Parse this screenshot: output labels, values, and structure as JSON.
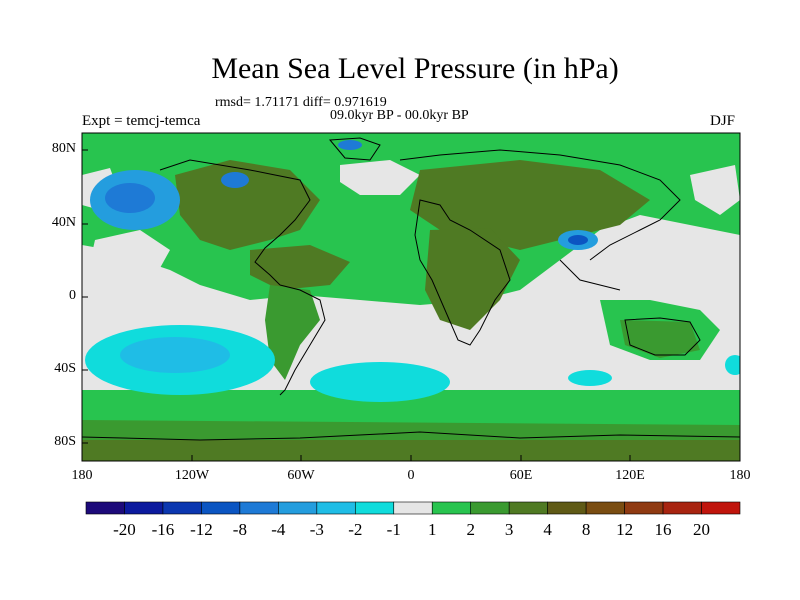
{
  "title": "Mean Sea Level Pressure (in hPa)",
  "stats_line": "rmsd= 1.71171  diff= 0.971619",
  "period_line": "09.0kyr BP - 00.0kyr BP",
  "experiment_label": "Expt = temcj-temca",
  "season_label": "DJF",
  "lat_ticks": [
    "80N",
    "40N",
    "0",
    "40S",
    "80S"
  ],
  "lon_ticks": [
    "180",
    "120W",
    "60W",
    "0",
    "60E",
    "120E",
    "180"
  ],
  "colorbar": {
    "colors": [
      "#1d0a7a",
      "#0c1a9e",
      "#0b37b0",
      "#0b55c2",
      "#1e7ad6",
      "#249dde",
      "#1fbde6",
      "#10dcdc",
      "#e6e6e6",
      "#28c44f",
      "#3a9a30",
      "#4f7a23",
      "#5f5a16",
      "#7a4d12",
      "#8f3a12",
      "#a82410",
      "#c0140c"
    ],
    "labels": [
      "-20",
      "-16",
      "-12",
      "-8",
      "-4",
      "-3",
      "-2",
      "-1",
      "1",
      "2",
      "3",
      "4",
      "8",
      "12",
      "16",
      "20"
    ]
  },
  "legend_colors": {
    "ocean_neutral": "#e6e6e6",
    "green_light": "#28c44f",
    "green_mid": "#3a9a30",
    "olive": "#4f7a23",
    "brown": "#5f5a16",
    "cyan": "#10dcdc",
    "blue": "#1e7ad6"
  }
}
